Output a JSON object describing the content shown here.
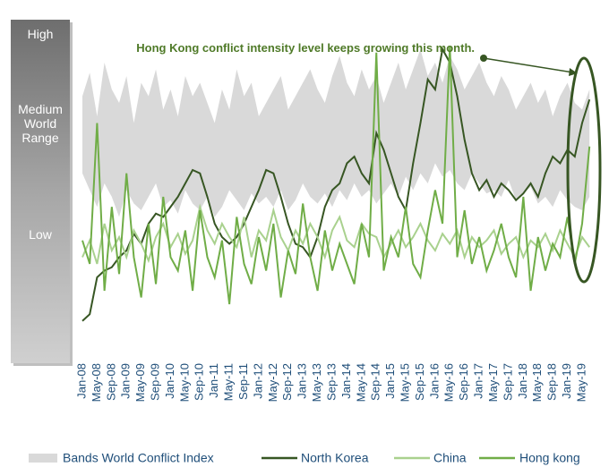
{
  "chart_data": {
    "type": "line",
    "annotation": "Hong Kong conflict intensity level keeps growing  this month.",
    "y_labels": [
      "High",
      "Medium World Range",
      "Low"
    ],
    "ylim": [
      0,
      100
    ],
    "categories": [
      "Jan-08",
      null,
      "May-08",
      null,
      "Sep-08",
      null,
      "Jan-09",
      null,
      "May-09",
      null,
      "Sep-09",
      null,
      "Jan-10",
      null,
      "May-10",
      null,
      "Sep-10",
      null,
      "Jan-11",
      null,
      "May-11",
      null,
      "Sep-11",
      null,
      "Jan-12",
      null,
      "May-12",
      null,
      "Sep-12",
      null,
      "Jan-13",
      null,
      "May-13",
      null,
      "Sep-13",
      null,
      "Jan-14",
      null,
      "May-14",
      null,
      "Sep-14",
      null,
      "Jan-15",
      null,
      "May-15",
      null,
      "Sep-15",
      null,
      "Jan-16",
      null,
      "May-16",
      null,
      "Sep-16",
      null,
      "Jan-17",
      null,
      "May-17",
      null,
      "Sep-17",
      null,
      "Jan-18",
      null,
      "May-18",
      null,
      "Sep-18",
      null,
      "Jan-19",
      null,
      "May-19",
      null
    ],
    "series": [
      {
        "name": "Bands World Conflict Index",
        "kind": "band",
        "color": "#d9d9d9",
        "values": [
          78,
          85,
          72,
          88,
          80,
          76,
          84,
          70,
          82,
          78,
          86,
          74,
          80,
          72,
          84,
          78,
          82,
          76,
          70,
          80,
          74,
          86,
          78,
          82,
          72,
          76,
          80,
          84,
          74,
          78,
          82,
          86,
          80,
          76,
          84,
          90,
          82,
          78,
          86,
          80,
          84,
          76,
          82,
          88,
          80,
          86,
          92,
          84,
          88,
          82,
          90,
          86,
          80,
          84,
          88,
          82,
          78,
          84,
          80,
          74,
          78,
          82,
          76,
          80,
          72,
          78,
          82,
          76,
          74,
          80
        ],
        "lower": [
          55,
          50,
          45,
          52,
          48,
          42,
          50,
          46,
          44,
          48,
          52,
          45,
          47,
          43,
          50,
          46,
          44,
          48,
          42,
          45,
          50,
          47,
          44,
          49,
          46,
          48,
          45,
          50,
          44,
          47,
          52,
          48,
          46,
          49,
          45,
          50,
          47,
          52,
          48,
          50,
          46,
          49,
          52,
          48,
          54,
          50,
          55,
          52,
          58,
          54,
          56,
          52,
          50,
          55,
          52,
          49,
          50,
          48,
          53,
          47,
          49,
          51,
          46,
          48,
          45,
          50,
          47,
          45,
          44,
          48
        ]
      },
      {
        "name": "North Korea",
        "color": "#375623",
        "values": [
          11,
          13,
          24,
          26,
          27,
          30,
          32,
          37,
          34,
          40,
          43,
          42,
          45,
          48,
          52,
          56,
          55,
          48,
          40,
          36,
          34,
          36,
          40,
          45,
          50,
          56,
          55,
          48,
          40,
          34,
          33,
          30,
          36,
          45,
          50,
          52,
          58,
          60,
          55,
          52,
          67,
          62,
          55,
          48,
          44,
          58,
          70,
          83,
          80,
          92,
          88,
          78,
          65,
          55,
          50,
          53,
          48,
          52,
          50,
          47,
          49,
          52,
          48,
          55,
          60,
          58,
          62,
          60,
          70,
          77
        ]
      },
      {
        "name": "China",
        "color": "#a9d18e",
        "values": [
          30,
          35,
          28,
          40,
          32,
          36,
          30,
          38,
          34,
          29,
          36,
          40,
          33,
          37,
          31,
          35,
          45,
          38,
          34,
          40,
          36,
          33,
          42,
          30,
          38,
          35,
          44,
          36,
          32,
          38,
          34,
          40,
          36,
          30,
          38,
          42,
          35,
          33,
          40,
          37,
          36,
          30,
          34,
          38,
          33,
          36,
          40,
          35,
          32,
          37,
          34,
          38,
          30,
          36,
          33,
          35,
          38,
          31,
          34,
          36,
          30,
          35,
          33,
          37,
          32,
          38,
          34,
          30,
          36,
          33
        ]
      },
      {
        "name": "Hong kong",
        "color": "#70ad47",
        "values": [
          35,
          28,
          70,
          20,
          45,
          25,
          55,
          30,
          18,
          40,
          22,
          48,
          30,
          26,
          38,
          20,
          44,
          30,
          24,
          35,
          16,
          42,
          28,
          22,
          36,
          26,
          40,
          18,
          32,
          25,
          46,
          30,
          20,
          38,
          26,
          34,
          28,
          22,
          40,
          30,
          91,
          26,
          36,
          30,
          45,
          28,
          24,
          38,
          50,
          40,
          93,
          30,
          44,
          28,
          36,
          26,
          32,
          40,
          30,
          24,
          48,
          20,
          36,
          26,
          34,
          30,
          42,
          28,
          40,
          63
        ]
      }
    ]
  }
}
